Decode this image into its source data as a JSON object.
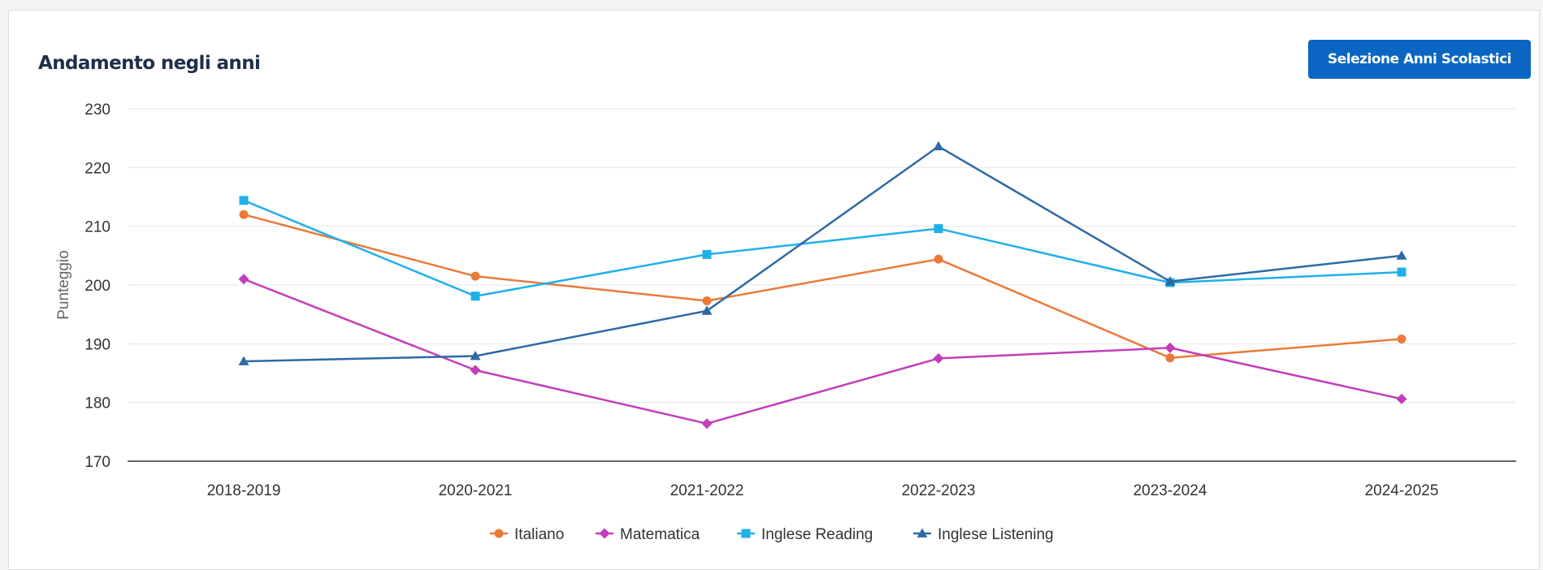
{
  "card": {
    "title": "Andamento negli anni",
    "button_label": "Selezione Anni Scolastici"
  },
  "colors": {
    "button": "#0a66c2",
    "title": "#1d2f4a"
  },
  "chart_data": {
    "type": "line",
    "categories": [
      "2018-2019",
      "2020-2021",
      "2021-2022",
      "2022-2023",
      "2023-2024",
      "2024-2025"
    ],
    "ylabel": "Punteggio",
    "xlabel": "",
    "ylim": [
      170,
      230
    ],
    "yticks": [
      170,
      180,
      190,
      200,
      210,
      220,
      230
    ],
    "grid": true,
    "legend_position": "bottom-center",
    "series": [
      {
        "name": "Italiano",
        "color": "#ea7a39",
        "marker": "circle",
        "values": [
          212.0,
          201.5,
          197.3,
          204.4,
          187.6,
          190.8
        ]
      },
      {
        "name": "Matematica",
        "color": "#c43dbc",
        "marker": "diamond",
        "values": [
          201.0,
          185.5,
          176.4,
          187.5,
          189.3,
          180.6
        ]
      },
      {
        "name": "Inglese Reading",
        "color": "#1fb0ea",
        "marker": "square",
        "values": [
          214.4,
          198.1,
          205.2,
          209.6,
          200.4,
          202.2
        ]
      },
      {
        "name": "Inglese Listening",
        "color": "#2d6aa5",
        "marker": "triangle",
        "values": [
          187.0,
          187.9,
          195.6,
          223.6,
          200.6,
          205.0
        ]
      }
    ]
  }
}
